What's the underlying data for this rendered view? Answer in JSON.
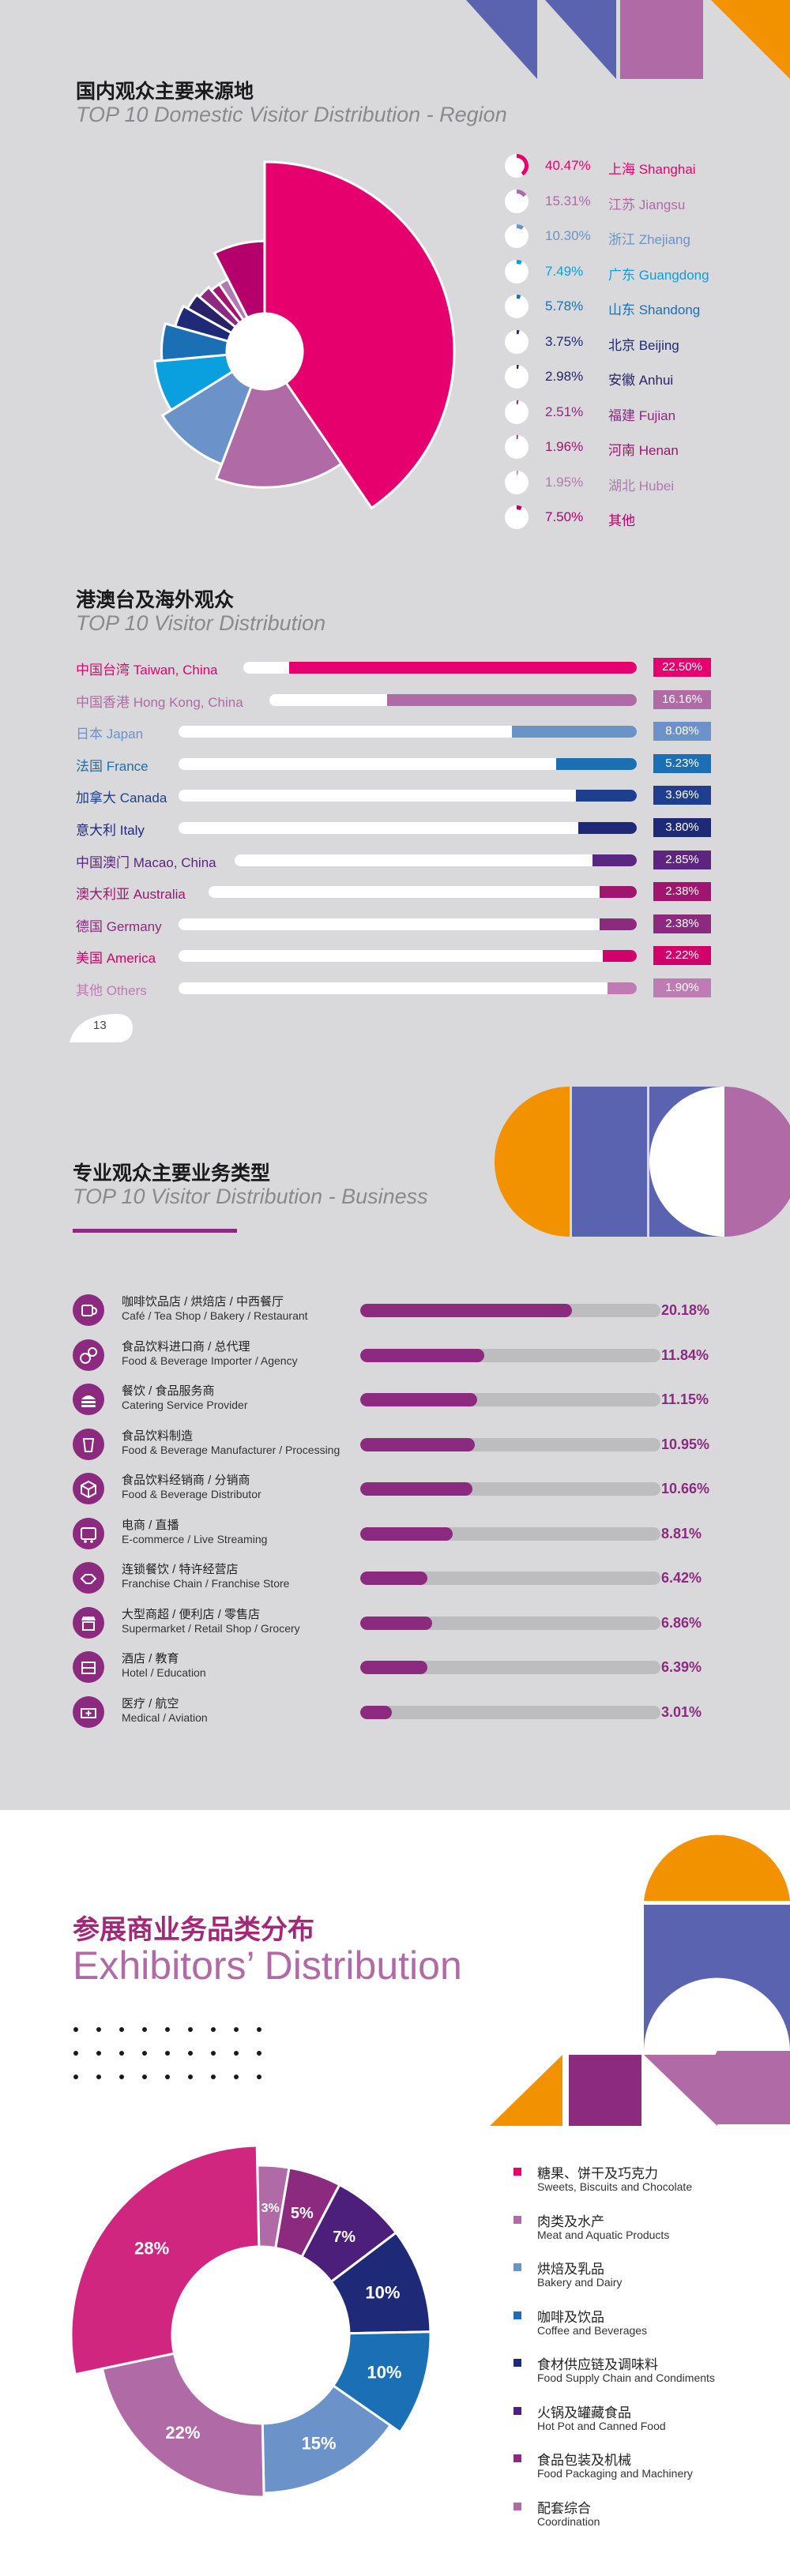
{
  "page1": {
    "region": {
      "title_cn": "国内观众主要来源地",
      "title_en": "TOP 10 Domestic Visitor Distribution - Region"
    },
    "overseas": {
      "title_cn": "港澳台及海外观众",
      "title_en": "TOP 10 Visitor Distribution"
    },
    "page_number": "13"
  },
  "page2": {
    "title_cn": "专业观众主要业务类型",
    "title_en": "TOP 10 Visitor Distribution - Business"
  },
  "page3": {
    "title_cn": "参展商业务品类分布",
    "title_en": "Exhibitors’ Distribution"
  },
  "colors": {
    "magenta": "#e5006e",
    "purple": "#8b2a7f",
    "violet": "#6066b0",
    "orange": "#f39200",
    "mauve": "#b06aa5",
    "lightmauve": "#bf7bb4",
    "steel": "#6b93c9",
    "navy": "#1e2a78"
  },
  "chart_data": [
    {
      "type": "pie",
      "title": "TOP 10 Domestic Visitor Distribution - Region",
      "categories": [
        "上海 Shanghai",
        "江苏 Jiangsu",
        "浙江 Zhejiang",
        "广东 Guangdong",
        "山东 Shandong",
        "北京 Beijing",
        "安徽 Anhui",
        "福建 Fujian",
        "河南 Henan",
        "湖北 Hubei",
        "其他"
      ],
      "labels": [
        "40.47%",
        "15.31%",
        "10.30%",
        "7.49%",
        "5.78%",
        "3.75%",
        "2.98%",
        "2.51%",
        "1.96%",
        "1.95%",
        "7.50%"
      ],
      "values": [
        40.47,
        15.31,
        10.3,
        7.49,
        5.78,
        3.75,
        2.98,
        2.51,
        1.96,
        1.95,
        7.5
      ],
      "colors": [
        "#e5006e",
        "#b06aa5",
        "#6b93c9",
        "#0aa0e0",
        "#1b6fb5",
        "#1e2a78",
        "#2a2266",
        "#8b2a7f",
        "#a0156e",
        "#b07ab0",
        "#b5006b"
      ],
      "text_colors": [
        "#e5006e",
        "#b06aa5",
        "#6b93c9",
        "#0aa0e0",
        "#1b6fb5",
        "#1e2a78",
        "#2a2266",
        "#8b2a7f",
        "#a0156e",
        "#b07ab0",
        "#b5006b"
      ]
    },
    {
      "type": "bar",
      "title": "TOP 10 Visitor Distribution",
      "categories": [
        "中国台湾 Taiwan, China",
        "中国香港 Hong Kong, China",
        "日本 Japan",
        "法国 France",
        "加拿大 Canada",
        "意大利 Italy",
        "中国澳门 Macao, China",
        "澳大利亚 Australia",
        "德国 Germany",
        "美国 America",
        "其他 Others"
      ],
      "labels": [
        "22.50%",
        "16.16%",
        "8.08%",
        "5.23%",
        "3.96%",
        "3.80%",
        "2.85%",
        "2.38%",
        "2.38%",
        "2.22%",
        "1.90%"
      ],
      "values": [
        22.5,
        16.16,
        8.08,
        5.23,
        3.96,
        3.8,
        2.85,
        2.38,
        2.38,
        2.22,
        1.9
      ],
      "colors": [
        "#e5006e",
        "#b06aa5",
        "#6b93c9",
        "#1b6fb5",
        "#1e3f8f",
        "#1e2a78",
        "#5b2580",
        "#a0156e",
        "#8b2a7f",
        "#d1006a",
        "#bf7bb4"
      ]
    },
    {
      "type": "bar",
      "title": "TOP 10 Visitor Distribution - Business",
      "categories": [
        {
          "cn": "咖啡饮品店 / 烘焙店 / 中西餐厅",
          "en": "Café / Tea Shop / Bakery / Restaurant",
          "icon": "coffee-cup-icon"
        },
        {
          "cn": "食品饮料进口商 / 总代理",
          "en": "Food & Beverage Importer / Agency",
          "icon": "exchange-icon"
        },
        {
          "cn": "餐饮 / 食品服务商",
          "en": "Catering Service Provider",
          "icon": "burger-icon"
        },
        {
          "cn": "食品饮料制造",
          "en": "Food & Beverage Manufacturer / Processing",
          "icon": "beverage-icon"
        },
        {
          "cn": "食品饮料经销商 / 分销商",
          "en": "Food & Beverage Distributor",
          "icon": "box-icon"
        },
        {
          "cn": "电商 / 直播",
          "en": "E-commerce / Live Streaming",
          "icon": "cart-icon"
        },
        {
          "cn": "连锁餐饮 / 特许经营店",
          "en": "Franchise Chain / Franchise Store",
          "icon": "handshake-icon"
        },
        {
          "cn": "大型商超 / 便利店 / 零售店",
          "en": "Supermarket / Retail Shop / Grocery",
          "icon": "shop-icon"
        },
        {
          "cn": "酒店 / 教育",
          "en": "Hotel / Education",
          "icon": "hotel-icon"
        },
        {
          "cn": "医疗 / 航空",
          "en": "Medical / Aviation",
          "icon": "medical-icon"
        }
      ],
      "labels": [
        "20.18%",
        "11.84%",
        "11.15%",
        "10.95%",
        "10.66%",
        "8.81%",
        "6.42%",
        "6.86%",
        "6.39%",
        "3.01%"
      ],
      "values": [
        20.18,
        11.84,
        11.15,
        10.95,
        10.66,
        8.81,
        6.42,
        6.86,
        6.39,
        3.01
      ],
      "color": "#8b2a7f"
    },
    {
      "type": "pie",
      "title": "Exhibitors’ Distribution",
      "categories": [
        {
          "cn": "糖果、饼干及巧克力",
          "en": "Sweets, Biscuits and Chocolate"
        },
        {
          "cn": "肉类及水产",
          "en": "Meat and Aquatic Products"
        },
        {
          "cn": "烘焙及乳品",
          "en": "Bakery and Dairy"
        },
        {
          "cn": "咖啡及饮品",
          "en": "Coffee and Beverages"
        },
        {
          "cn": "食材供应链及调味料",
          "en": "Food Supply Chain and Condiments"
        },
        {
          "cn": "火锅及罐藏食品",
          "en": "Hot Pot and Canned Food"
        },
        {
          "cn": "食品包装及机械",
          "en": "Food Packaging and Machinery"
        },
        {
          "cn": "配套综合",
          "en": "Coordination"
        }
      ],
      "labels": [
        "28%",
        "22%",
        "15%",
        "10%",
        "10%",
        "7%",
        "5%",
        "3%"
      ],
      "values": [
        28,
        22,
        15,
        10,
        10,
        7,
        5,
        3
      ],
      "colors": [
        "#d1267f",
        "#b06aa5",
        "#6b93c9",
        "#1b6fb5",
        "#1e2a78",
        "#4b1f7a",
        "#8b2a7f",
        "#b06aa5"
      ],
      "dot_colors": [
        "#e5006e",
        "#b06aa5",
        "#6b93c9",
        "#1b6fb5",
        "#1e2a78",
        "#4b1f7a",
        "#8b2a7f",
        "#b06aa5"
      ]
    }
  ]
}
